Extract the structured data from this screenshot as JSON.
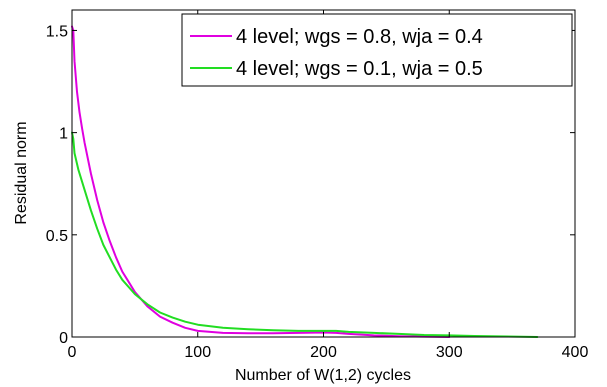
{
  "chart_data": {
    "type": "line",
    "title": "",
    "xlabel": "Number of W(1,2) cycles",
    "ylabel": "Residual norm",
    "xlim": [
      0,
      400
    ],
    "ylim": [
      0,
      1.6
    ],
    "xticks": [
      0,
      100,
      200,
      300,
      400
    ],
    "xtick_labels": [
      "0",
      "100",
      "200",
      "300",
      "400"
    ],
    "yticks": [
      0,
      0.5,
      1,
      1.5
    ],
    "ytick_labels": [
      "0",
      "0.5",
      "1",
      "1.5"
    ],
    "grid": false,
    "legend_position": "top-right",
    "series": [
      {
        "name": "4 level; wgs = 0.8, wja = 0.4",
        "color": "#e000e0",
        "x": [
          0,
          1,
          2,
          4,
          6,
          8,
          10,
          15,
          20,
          25,
          30,
          35,
          40,
          50,
          60,
          70,
          80,
          90,
          100,
          120,
          140,
          160,
          180,
          200,
          210,
          220,
          240,
          260,
          280,
          300
        ],
        "y": [
          1.52,
          1.5,
          1.35,
          1.2,
          1.1,
          1.02,
          0.95,
          0.8,
          0.67,
          0.56,
          0.47,
          0.39,
          0.32,
          0.22,
          0.15,
          0.1,
          0.07,
          0.045,
          0.03,
          0.02,
          0.018,
          0.018,
          0.02,
          0.022,
          0.02,
          0.015,
          0.008,
          0.004,
          0.002,
          0.0
        ]
      },
      {
        "name": "4 level; wgs = 0.1, wja = 0.5",
        "color": "#22dd22",
        "x": [
          0,
          1,
          2,
          5,
          10,
          15,
          20,
          25,
          30,
          35,
          40,
          50,
          60,
          70,
          80,
          90,
          100,
          120,
          140,
          160,
          180,
          200,
          210,
          220,
          240,
          260,
          280,
          300,
          320,
          340,
          370
        ],
        "y": [
          1.0,
          0.97,
          0.9,
          0.82,
          0.72,
          0.62,
          0.53,
          0.45,
          0.39,
          0.33,
          0.28,
          0.21,
          0.16,
          0.12,
          0.095,
          0.075,
          0.06,
          0.045,
          0.038,
          0.033,
          0.03,
          0.03,
          0.03,
          0.025,
          0.02,
          0.015,
          0.01,
          0.008,
          0.005,
          0.003,
          0.0
        ]
      }
    ]
  }
}
